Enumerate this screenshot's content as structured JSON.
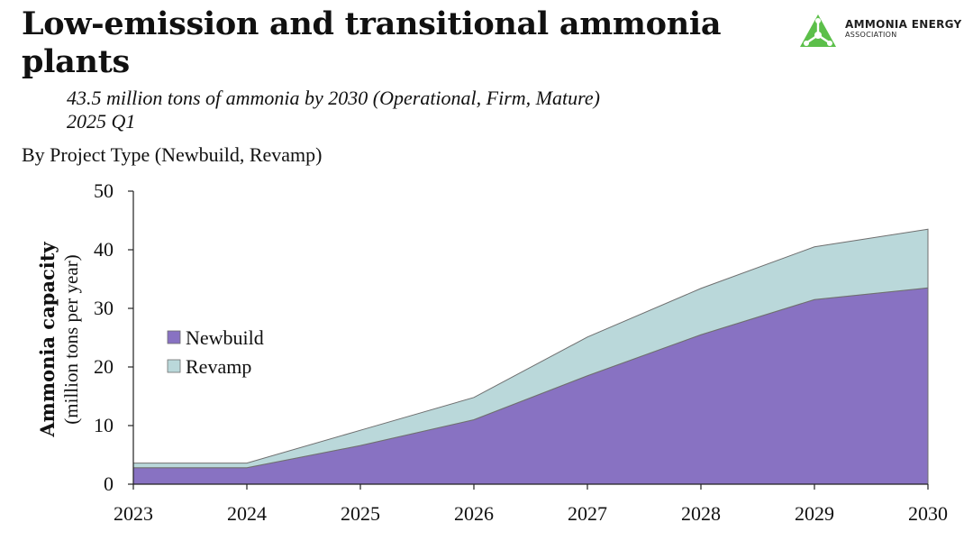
{
  "title": "Low-emission and transitional ammonia plants",
  "subtitle_line1": "43.5 million tons of ammonia by 2030 (Operational, Firm, Mature)",
  "subtitle_line2": "2025 Q1",
  "breakdown_label": "By Project Type (Newbuild, Revamp)",
  "logo": {
    "name": "AMMONIA ENERGY",
    "sub": "ASSOCIATION",
    "color": "#5cbf4a",
    "icon": "ammonia-molecule-triangle-icon"
  },
  "chart_data": {
    "type": "area",
    "stacked": true,
    "x": [
      "2023",
      "2024",
      "2025",
      "2026",
      "2027",
      "2028",
      "2029",
      "2030"
    ],
    "ylabel": "Ammonia capacity",
    "ylabel_unit": "(million tons per year)",
    "ylim": [
      0,
      50
    ],
    "yticks": [
      0,
      10,
      20,
      30,
      40,
      50
    ],
    "grid": false,
    "legend_position": "left-middle",
    "series": [
      {
        "name": "Newbuild",
        "color": "#8872c2",
        "values": [
          2.8,
          2.8,
          6.6,
          11.0,
          18.5,
          25.5,
          31.5,
          33.5
        ]
      },
      {
        "name": "Revamp",
        "color": "#bad8da",
        "values": [
          0.8,
          0.8,
          2.6,
          3.8,
          6.6,
          7.9,
          9.0,
          10.0
        ]
      }
    ]
  }
}
